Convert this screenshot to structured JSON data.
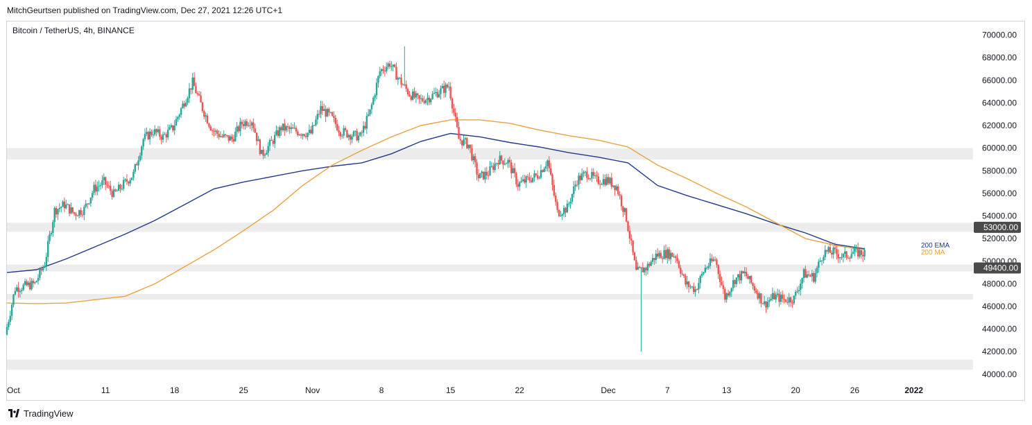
{
  "header": {
    "publish_line": "MitchGeurtsen published on TradingView.com, Dec 27, 2021 12:26 UTC+1"
  },
  "chart_title": "Bitcoin / TetherUS, 4h, BINANCE",
  "footer": {
    "brand": "TradingView",
    "logo_icon": "tradingview-logo-icon"
  },
  "colors": {
    "up": "#26a69a",
    "down": "#ef5350",
    "ema": "#1e3a8a",
    "ma": "#e8a33d",
    "zone": "#ececec",
    "label_bg": "#4a4a4a",
    "axis_text": "#131722"
  },
  "chart_data": {
    "type": "candlestick",
    "title": "Bitcoin / TetherUS, 4h, BINANCE",
    "ylim": [
      39500,
      71200
    ],
    "xlim": [
      "2021-10-01",
      "2022-01-07"
    ],
    "y_ticks": [
      40000,
      42000,
      44000,
      46000,
      48000,
      50000,
      52000,
      54000,
      56000,
      58000,
      60000,
      62000,
      64000,
      66000,
      68000,
      70000
    ],
    "y_tick_labels": [
      "40000.00",
      "42000.00",
      "44000.00",
      "46000.00",
      "48000.00",
      "50000.00",
      "52000.00",
      "54000.00",
      "56000.00",
      "58000.00",
      "60000.00",
      "62000.00",
      "64000.00",
      "66000.00",
      "68000.00",
      "70000.00"
    ],
    "x_ticks": [
      {
        "label": "Oct",
        "date": "2021-10-01"
      },
      {
        "label": "11",
        "date": "2021-10-11"
      },
      {
        "label": "18",
        "date": "2021-10-18"
      },
      {
        "label": "25",
        "date": "2021-10-25"
      },
      {
        "label": "Nov",
        "date": "2021-11-01"
      },
      {
        "label": "8",
        "date": "2021-11-08"
      },
      {
        "label": "15",
        "date": "2021-11-15"
      },
      {
        "label": "22",
        "date": "2021-11-22"
      },
      {
        "label": "Dec",
        "date": "2021-12-01"
      },
      {
        "label": "7",
        "date": "2021-12-07"
      },
      {
        "label": "13",
        "date": "2021-12-13"
      },
      {
        "label": "20",
        "date": "2021-12-20"
      },
      {
        "label": "26",
        "date": "2021-12-26"
      },
      {
        "label": "2022",
        "date": "2022-01-01"
      }
    ],
    "zones": [
      {
        "from": 59000,
        "to": 60000
      },
      {
        "from": 52600,
        "to": 53400
      },
      {
        "from": 49100,
        "to": 49700
      },
      {
        "from": 46600,
        "to": 47100
      },
      {
        "from": 40400,
        "to": 41300
      }
    ],
    "price_labels": [
      {
        "value": 53000,
        "text": "53000.00"
      },
      {
        "value": 49400,
        "text": "49400.00"
      }
    ],
    "indicators": [
      {
        "name": "200 EMA",
        "color": "#1e3a8a",
        "points": [
          {
            "date": "2021-10-01",
            "value": 49000
          },
          {
            "date": "2021-10-04",
            "value": 49250
          },
          {
            "date": "2021-10-07",
            "value": 50200
          },
          {
            "date": "2021-10-10",
            "value": 51300
          },
          {
            "date": "2021-10-13",
            "value": 52400
          },
          {
            "date": "2021-10-16",
            "value": 53600
          },
          {
            "date": "2021-10-19",
            "value": 55000
          },
          {
            "date": "2021-10-22",
            "value": 56400
          },
          {
            "date": "2021-10-25",
            "value": 57000
          },
          {
            "date": "2021-10-28",
            "value": 57500
          },
          {
            "date": "2021-10-31",
            "value": 58000
          },
          {
            "date": "2021-11-03",
            "value": 58400
          },
          {
            "date": "2021-11-06",
            "value": 58700
          },
          {
            "date": "2021-11-09",
            "value": 59500
          },
          {
            "date": "2021-11-12",
            "value": 60600
          },
          {
            "date": "2021-11-15",
            "value": 61300
          },
          {
            "date": "2021-11-18",
            "value": 61000
          },
          {
            "date": "2021-11-21",
            "value": 60500
          },
          {
            "date": "2021-11-24",
            "value": 60100
          },
          {
            "date": "2021-11-27",
            "value": 59600
          },
          {
            "date": "2021-11-30",
            "value": 59200
          },
          {
            "date": "2021-12-03",
            "value": 58700
          },
          {
            "date": "2021-12-06",
            "value": 56700
          },
          {
            "date": "2021-12-09",
            "value": 55800
          },
          {
            "date": "2021-12-12",
            "value": 55000
          },
          {
            "date": "2021-12-15",
            "value": 54200
          },
          {
            "date": "2021-12-18",
            "value": 53300
          },
          {
            "date": "2021-12-21",
            "value": 52500
          },
          {
            "date": "2021-12-24",
            "value": 51500
          },
          {
            "date": "2021-12-27",
            "value": 51100
          }
        ]
      },
      {
        "name": "200 MA",
        "color": "#e8a33d",
        "points": [
          {
            "date": "2021-10-01",
            "value": 46300
          },
          {
            "date": "2021-10-04",
            "value": 46250
          },
          {
            "date": "2021-10-07",
            "value": 46300
          },
          {
            "date": "2021-10-10",
            "value": 46600
          },
          {
            "date": "2021-10-13",
            "value": 46900
          },
          {
            "date": "2021-10-16",
            "value": 48000
          },
          {
            "date": "2021-10-19",
            "value": 49500
          },
          {
            "date": "2021-10-22",
            "value": 51000
          },
          {
            "date": "2021-10-25",
            "value": 52700
          },
          {
            "date": "2021-10-28",
            "value": 54500
          },
          {
            "date": "2021-10-31",
            "value": 56700
          },
          {
            "date": "2021-11-03",
            "value": 58500
          },
          {
            "date": "2021-11-06",
            "value": 59800
          },
          {
            "date": "2021-11-09",
            "value": 61000
          },
          {
            "date": "2021-11-12",
            "value": 62000
          },
          {
            "date": "2021-11-15",
            "value": 62500
          },
          {
            "date": "2021-11-18",
            "value": 62500
          },
          {
            "date": "2021-11-21",
            "value": 62200
          },
          {
            "date": "2021-11-24",
            "value": 61600
          },
          {
            "date": "2021-11-27",
            "value": 61100
          },
          {
            "date": "2021-11-30",
            "value": 60700
          },
          {
            "date": "2021-12-03",
            "value": 60100
          },
          {
            "date": "2021-12-06",
            "value": 58500
          },
          {
            "date": "2021-12-09",
            "value": 57300
          },
          {
            "date": "2021-12-12",
            "value": 56000
          },
          {
            "date": "2021-12-15",
            "value": 54800
          },
          {
            "date": "2021-12-18",
            "value": 53400
          },
          {
            "date": "2021-12-21",
            "value": 52000
          },
          {
            "date": "2021-12-24",
            "value": 51400
          },
          {
            "date": "2021-12-27",
            "value": 51000
          }
        ]
      }
    ],
    "price_path": [
      {
        "date": "2021-10-01",
        "value": 43500
      },
      {
        "date": "2021-10-02",
        "value": 47600
      },
      {
        "date": "2021-10-04",
        "value": 48000
      },
      {
        "date": "2021-10-05",
        "value": 49800
      },
      {
        "date": "2021-10-06",
        "value": 54500
      },
      {
        "date": "2021-10-07",
        "value": 55000
      },
      {
        "date": "2021-10-08",
        "value": 54200
      },
      {
        "date": "2021-10-09",
        "value": 54600
      },
      {
        "date": "2021-10-10",
        "value": 56400
      },
      {
        "date": "2021-10-11",
        "value": 57000
      },
      {
        "date": "2021-10-12",
        "value": 55900
      },
      {
        "date": "2021-10-13",
        "value": 56800
      },
      {
        "date": "2021-10-14",
        "value": 57700
      },
      {
        "date": "2021-10-15",
        "value": 60800
      },
      {
        "date": "2021-10-16",
        "value": 61500
      },
      {
        "date": "2021-10-17",
        "value": 61000
      },
      {
        "date": "2021-10-18",
        "value": 61800
      },
      {
        "date": "2021-10-19",
        "value": 63800
      },
      {
        "date": "2021-10-20",
        "value": 65800
      },
      {
        "date": "2021-10-21",
        "value": 63500
      },
      {
        "date": "2021-10-22",
        "value": 61600
      },
      {
        "date": "2021-10-23",
        "value": 61000
      },
      {
        "date": "2021-10-24",
        "value": 60800
      },
      {
        "date": "2021-10-25",
        "value": 62200
      },
      {
        "date": "2021-10-26",
        "value": 62500
      },
      {
        "date": "2021-10-27",
        "value": 59400
      },
      {
        "date": "2021-10-28",
        "value": 60500
      },
      {
        "date": "2021-10-29",
        "value": 61800
      },
      {
        "date": "2021-10-30",
        "value": 61600
      },
      {
        "date": "2021-10-31",
        "value": 61400
      },
      {
        "date": "2021-11-01",
        "value": 61300
      },
      {
        "date": "2021-11-02",
        "value": 63500
      },
      {
        "date": "2021-11-03",
        "value": 62800
      },
      {
        "date": "2021-11-04",
        "value": 61500
      },
      {
        "date": "2021-11-05",
        "value": 61200
      },
      {
        "date": "2021-11-06",
        "value": 61000
      },
      {
        "date": "2021-11-07",
        "value": 63200
      },
      {
        "date": "2021-11-08",
        "value": 66800
      },
      {
        "date": "2021-11-09",
        "value": 67500
      },
      {
        "date": "2021-11-10",
        "value": 66000
      },
      {
        "date": "2021-11-11",
        "value": 64800
      },
      {
        "date": "2021-11-12",
        "value": 64200
      },
      {
        "date": "2021-11-13",
        "value": 64500
      },
      {
        "date": "2021-11-14",
        "value": 65000
      },
      {
        "date": "2021-11-15",
        "value": 65500
      },
      {
        "date": "2021-11-16",
        "value": 60800
      },
      {
        "date": "2021-11-17",
        "value": 60300
      },
      {
        "date": "2021-11-18",
        "value": 57400
      },
      {
        "date": "2021-11-19",
        "value": 57800
      },
      {
        "date": "2021-11-20",
        "value": 59000
      },
      {
        "date": "2021-11-21",
        "value": 58800
      },
      {
        "date": "2021-11-22",
        "value": 56800
      },
      {
        "date": "2021-11-23",
        "value": 57200
      },
      {
        "date": "2021-11-24",
        "value": 57600
      },
      {
        "date": "2021-11-25",
        "value": 58900
      },
      {
        "date": "2021-11-26",
        "value": 54300
      },
      {
        "date": "2021-11-27",
        "value": 54700
      },
      {
        "date": "2021-11-28",
        "value": 57200
      },
      {
        "date": "2021-11-29",
        "value": 57800
      },
      {
        "date": "2021-11-30",
        "value": 57100
      },
      {
        "date": "2021-12-01",
        "value": 57200
      },
      {
        "date": "2021-12-02",
        "value": 56600
      },
      {
        "date": "2021-12-03",
        "value": 53800
      },
      {
        "date": "2021-12-04",
        "value": 49000
      },
      {
        "date": "2021-12-05",
        "value": 49400
      },
      {
        "date": "2021-12-06",
        "value": 50500
      },
      {
        "date": "2021-12-07",
        "value": 50700
      },
      {
        "date": "2021-12-08",
        "value": 50500
      },
      {
        "date": "2021-12-09",
        "value": 48000
      },
      {
        "date": "2021-12-10",
        "value": 47500
      },
      {
        "date": "2021-12-11",
        "value": 49400
      },
      {
        "date": "2021-12-12",
        "value": 50200
      },
      {
        "date": "2021-12-13",
        "value": 46800
      },
      {
        "date": "2021-12-14",
        "value": 48400
      },
      {
        "date": "2021-12-15",
        "value": 48900
      },
      {
        "date": "2021-12-16",
        "value": 47600
      },
      {
        "date": "2021-12-17",
        "value": 46200
      },
      {
        "date": "2021-12-18",
        "value": 46900
      },
      {
        "date": "2021-12-19",
        "value": 46600
      },
      {
        "date": "2021-12-20",
        "value": 46700
      },
      {
        "date": "2021-12-21",
        "value": 48900
      },
      {
        "date": "2021-12-22",
        "value": 48600
      },
      {
        "date": "2021-12-23",
        "value": 50800
      },
      {
        "date": "2021-12-24",
        "value": 50800
      },
      {
        "date": "2021-12-25",
        "value": 50400
      },
      {
        "date": "2021-12-26",
        "value": 50800
      },
      {
        "date": "2021-12-27",
        "value": 50700
      }
    ],
    "wick_extremes": [
      {
        "date": "2021-11-10",
        "high": 69000
      },
      {
        "date": "2021-12-04",
        "low": 42000
      }
    ],
    "legend": [
      {
        "name": "200 EMA",
        "color": "#1e3a8a"
      },
      {
        "name": "200 MA",
        "color": "#e8a33d"
      }
    ],
    "grid": false
  }
}
